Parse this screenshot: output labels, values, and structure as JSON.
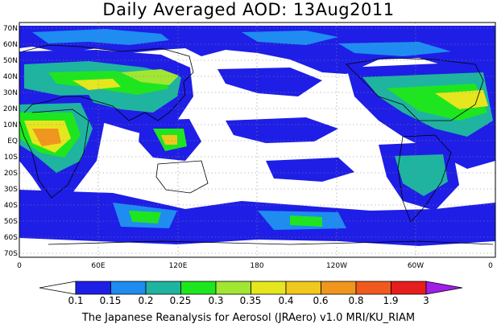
{
  "title": "Daily Averaged AOD: 13Aug2011",
  "credit": "The Japanese Reanalysis for Aerosol (JRAero) v1.0 MRI/KU_RIAM",
  "map": {
    "lat_labels": [
      "70N",
      "60N",
      "50N",
      "40N",
      "30N",
      "20N",
      "10N",
      "EQ",
      "10S",
      "20S",
      "30S",
      "40S",
      "50S",
      "60S",
      "70S"
    ],
    "lon_labels": [
      "0",
      "60E",
      "120E",
      "180",
      "120W",
      "60W",
      "0"
    ]
  },
  "colorbar": {
    "labels": [
      "0.1",
      "0.15",
      "0.2",
      "0.25",
      "0.3",
      "0.35",
      "0.4",
      "0.6",
      "0.8",
      "1.9",
      "3"
    ],
    "colors": [
      "#ffffff",
      "#1e1ee6",
      "#1e8cf0",
      "#1eb4a0",
      "#1ee61e",
      "#a0e632",
      "#e6e61e",
      "#f0c81e",
      "#f0961e",
      "#f05a1e",
      "#e61e1e",
      "#a01ee6"
    ]
  }
}
